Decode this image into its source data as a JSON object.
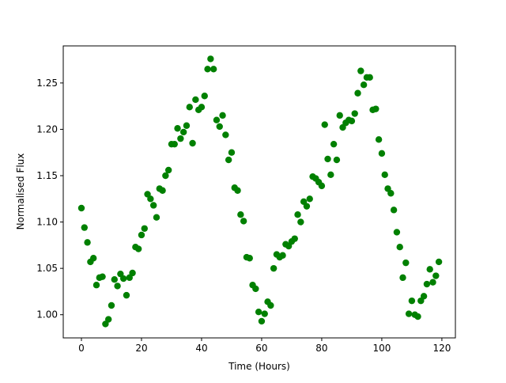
{
  "chart_data": {
    "type": "scatter",
    "x_label": "Time (Hours)",
    "y_label": "Normalised Flux",
    "x": [
      0,
      1,
      2,
      3,
      4,
      5,
      6,
      7,
      8,
      9,
      10,
      11,
      12,
      13,
      14,
      15,
      16,
      17,
      18,
      19,
      20,
      21,
      22,
      23,
      24,
      25,
      26,
      27,
      28,
      29,
      30,
      31,
      32,
      33,
      34,
      35,
      36,
      37,
      38,
      39,
      40,
      41,
      42,
      43,
      44,
      45,
      46,
      47,
      48,
      49,
      50,
      51,
      52,
      53,
      54,
      55,
      56,
      57,
      58,
      59,
      60,
      61,
      62,
      63,
      64,
      65,
      66,
      67,
      68,
      69,
      70,
      71,
      72,
      73,
      74,
      75,
      76,
      77,
      78,
      79,
      80,
      81,
      82,
      83,
      84,
      85,
      86,
      87,
      88,
      89,
      90,
      91,
      92,
      93,
      94,
      95,
      96,
      97,
      98,
      99,
      100,
      101,
      102,
      103,
      104,
      105,
      106,
      107,
      108,
      109,
      110,
      111,
      112,
      113,
      114,
      115,
      116,
      117,
      118,
      119
    ],
    "values": [
      1.115,
      1.094,
      1.078,
      1.057,
      1.061,
      1.032,
      1.04,
      1.041,
      0.99,
      0.995,
      1.01,
      1.038,
      1.031,
      1.044,
      1.039,
      1.021,
      1.04,
      1.045,
      1.073,
      1.071,
      1.086,
      1.093,
      1.13,
      1.125,
      1.118,
      1.105,
      1.136,
      1.134,
      1.15,
      1.156,
      1.184,
      1.184,
      1.201,
      1.19,
      1.197,
      1.204,
      1.224,
      1.185,
      1.232,
      1.221,
      1.224,
      1.236,
      1.265,
      1.276,
      1.265,
      1.21,
      1.203,
      1.215,
      1.194,
      1.167,
      1.175,
      1.137,
      1.134,
      1.108,
      1.101,
      1.062,
      1.061,
      1.032,
      1.028,
      1.003,
      0.993,
      1.001,
      1.014,
      1.01,
      1.05,
      1.065,
      1.062,
      1.064,
      1.076,
      1.074,
      1.079,
      1.082,
      1.108,
      1.1,
      1.122,
      1.117,
      1.125,
      1.149,
      1.147,
      1.143,
      1.139,
      1.205,
      1.168,
      1.151,
      1.184,
      1.167,
      1.215,
      1.202,
      1.207,
      1.21,
      1.209,
      1.217,
      1.239,
      1.263,
      1.248,
      1.256,
      1.256,
      1.221,
      1.222,
      1.189,
      1.174,
      1.151,
      1.136,
      1.131,
      1.113,
      1.089,
      1.073,
      1.04,
      1.056,
      1.001,
      1.015,
      1.0,
      0.998,
      1.015,
      1.02,
      1.033,
      1.049,
      1.035,
      1.042,
      1.057
    ],
    "color": "#008000",
    "xlim": [
      -6.05,
      124.5
    ],
    "ylim": [
      0.975,
      1.29
    ],
    "xticks": [
      0,
      20,
      40,
      60,
      80,
      100,
      120
    ],
    "yticks": [
      {
        "value": 1.0,
        "label": "1.00"
      },
      1.05,
      {
        "value": 1.1,
        "label": "1.10"
      },
      1.15,
      {
        "value": 1.2,
        "label": "1.20"
      },
      1.25
    ]
  }
}
